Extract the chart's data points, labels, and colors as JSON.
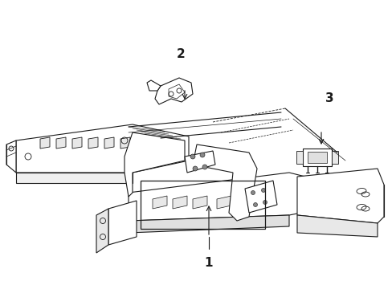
{
  "title": "",
  "background_color": "#ffffff",
  "line_color": "#1a1a1a",
  "line_width": 0.8,
  "label_1": "1",
  "label_2": "2",
  "label_3": "3",
  "label_fontsize": 11,
  "fig_width": 4.89,
  "fig_height": 3.6,
  "dpi": 100
}
